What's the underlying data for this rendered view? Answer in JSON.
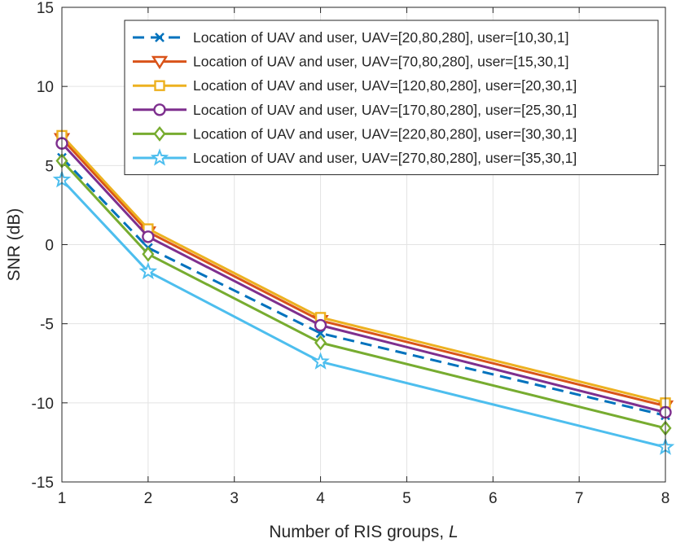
{
  "chart_data": {
    "type": "line",
    "xlabel_text": "Number of RIS groups, ",
    "xlabel_var": "L",
    "ylabel": "SNR (dB)",
    "xlim": [
      1,
      8
    ],
    "ylim": [
      -15,
      15
    ],
    "xticks": [
      1,
      2,
      3,
      4,
      5,
      6,
      7,
      8
    ],
    "yticks": [
      -15,
      -10,
      -5,
      0,
      5,
      10,
      15
    ],
    "xtick_labels": [
      "1",
      "2",
      "3",
      "4",
      "5",
      "6",
      "7",
      "8"
    ],
    "ytick_labels": [
      "-15",
      "-10",
      "-5",
      "0",
      "5",
      "10",
      "15"
    ],
    "grid": true,
    "legend_position": "top-right",
    "x": [
      1,
      2,
      4,
      8
    ],
    "series": [
      {
        "name": "Location of UAV and user, UAV=[20,80,280], user=[10,30,1]",
        "values": [
          5.5,
          -0.2,
          -5.6,
          -10.8
        ],
        "color": "#0072BD",
        "marker": "x",
        "dash": true
      },
      {
        "name": "Location of UAV and user, UAV=[70,80,280], user=[15,30,1]",
        "values": [
          6.7,
          0.8,
          -4.8,
          -10.2
        ],
        "color": "#D95319",
        "marker": "triangle-down",
        "dash": false
      },
      {
        "name": "Location of UAV and user, UAV=[120,80,280], user=[20,30,1]",
        "values": [
          6.9,
          1.0,
          -4.6,
          -10.0
        ],
        "color": "#EDB120",
        "marker": "square",
        "dash": false
      },
      {
        "name": "Location of UAV and user, UAV=[170,80,280], user=[25,30,1]",
        "values": [
          6.4,
          0.5,
          -5.1,
          -10.6
        ],
        "color": "#7E2F8E",
        "marker": "circle",
        "dash": false
      },
      {
        "name": "Location of UAV and user, UAV=[220,80,280], user=[30,30,1]",
        "values": [
          5.3,
          -0.6,
          -6.2,
          -11.6
        ],
        "color": "#77AC30",
        "marker": "diamond",
        "dash": false
      },
      {
        "name": "Location of UAV and user, UAV=[270,80,280], user=[35,30,1]",
        "values": [
          4.1,
          -1.7,
          -7.4,
          -12.8
        ],
        "color": "#4DBEEE",
        "marker": "star",
        "dash": false
      }
    ]
  }
}
